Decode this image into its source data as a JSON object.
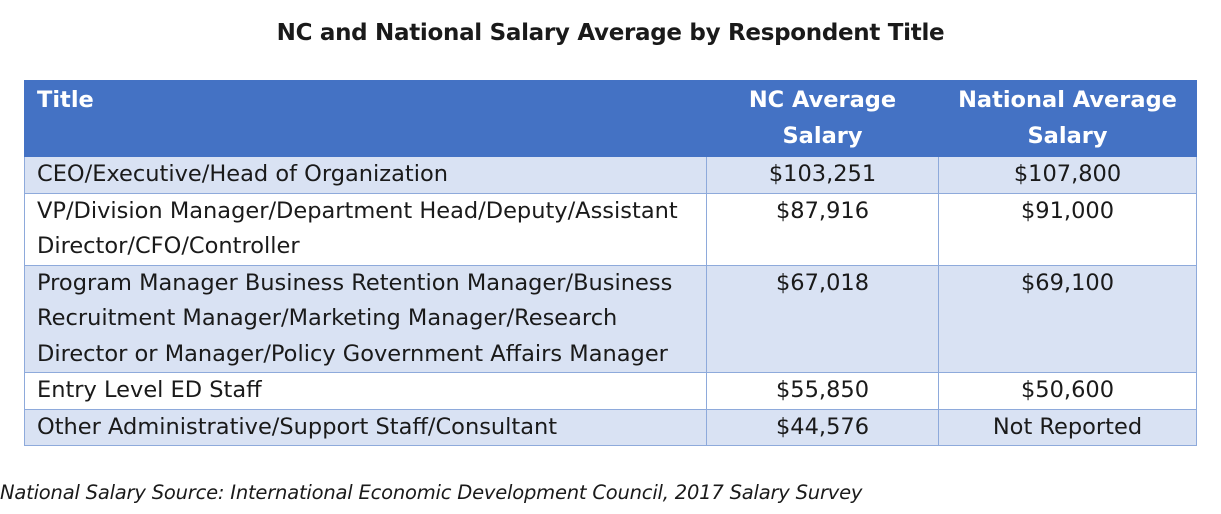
{
  "title": "NC and National Salary Average by Respondent Title",
  "table": {
    "headers": [
      "Title",
      "NC Average Salary",
      "National Average Salary"
    ],
    "rows": [
      [
        "CEO/Executive/Head of Organization",
        "$103,251",
        "$107,800"
      ],
      [
        "VP/Division Manager/Department Head/Deputy/Assistant Director/CFO/Controller",
        "$87,916",
        "$91,000"
      ],
      [
        "Program Manager Business Retention Manager/Business Recruitment Manager/Marketing Manager/Research Director or Manager/Policy Government Affairs Manager",
        "$67,018",
        "$69,100"
      ],
      [
        "Entry Level ED Staff",
        "$55,850",
        "$50,600"
      ],
      [
        "Other Administrative/Support Staff/Consultant",
        "$44,576",
        "Not Reported"
      ]
    ]
  },
  "footnote": "National Salary Source: International Economic Development Council, 2017 Salary Survey",
  "colors": {
    "header_bg": "#4472c4",
    "shaded_row_bg": "#d9e2f3",
    "border": "#8eaadb"
  }
}
